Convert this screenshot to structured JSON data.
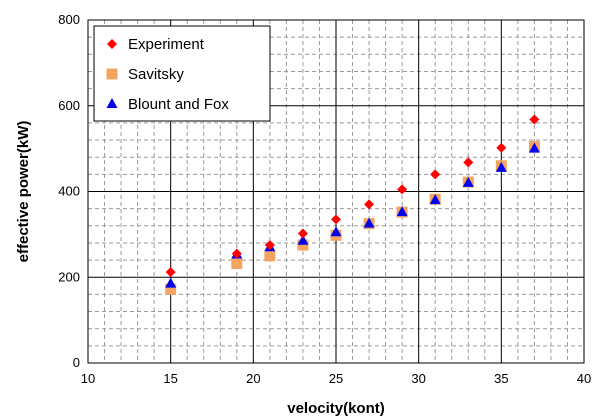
{
  "chart_data": {
    "type": "scatter",
    "xlabel": "velocity(kont)",
    "ylabel": "effective power(kW)",
    "xlim": [
      10,
      40
    ],
    "ylim": [
      0,
      800
    ],
    "x_major_ticks": [
      10,
      15,
      20,
      25,
      30,
      35,
      40
    ],
    "y_major_ticks": [
      0,
      200,
      400,
      600,
      800
    ],
    "x_tick_labels": [
      "10",
      "15",
      "20",
      "25",
      "30",
      "35",
      "40"
    ],
    "y_tick_labels": [
      "0",
      "200",
      "400",
      "600",
      "800"
    ],
    "grid": "major solid, minor dashed",
    "legend_position": "top-left",
    "series": [
      {
        "name": "Experiment",
        "marker": "diamond",
        "color": "#ff0000",
        "x": [
          15,
          19,
          21,
          23,
          25,
          27,
          29,
          31,
          33,
          35,
          37
        ],
        "y": [
          212,
          255,
          275,
          302,
          335,
          370,
          405,
          440,
          468,
          502,
          568
        ]
      },
      {
        "name": "Savitsky",
        "marker": "square",
        "color": "#f4a460",
        "x": [
          15,
          19,
          21,
          23,
          25,
          27,
          29,
          31,
          33,
          35,
          37
        ],
        "y": [
          172,
          232,
          250,
          275,
          298,
          325,
          352,
          382,
          422,
          460,
          505
        ]
      },
      {
        "name": "Blount and Fox",
        "marker": "triangle",
        "color": "#0000ee",
        "x": [
          15,
          19,
          21,
          23,
          25,
          27,
          29,
          31,
          33,
          35,
          37
        ],
        "y": [
          185,
          253,
          270,
          285,
          305,
          325,
          352,
          380,
          420,
          455,
          500
        ]
      }
    ]
  }
}
